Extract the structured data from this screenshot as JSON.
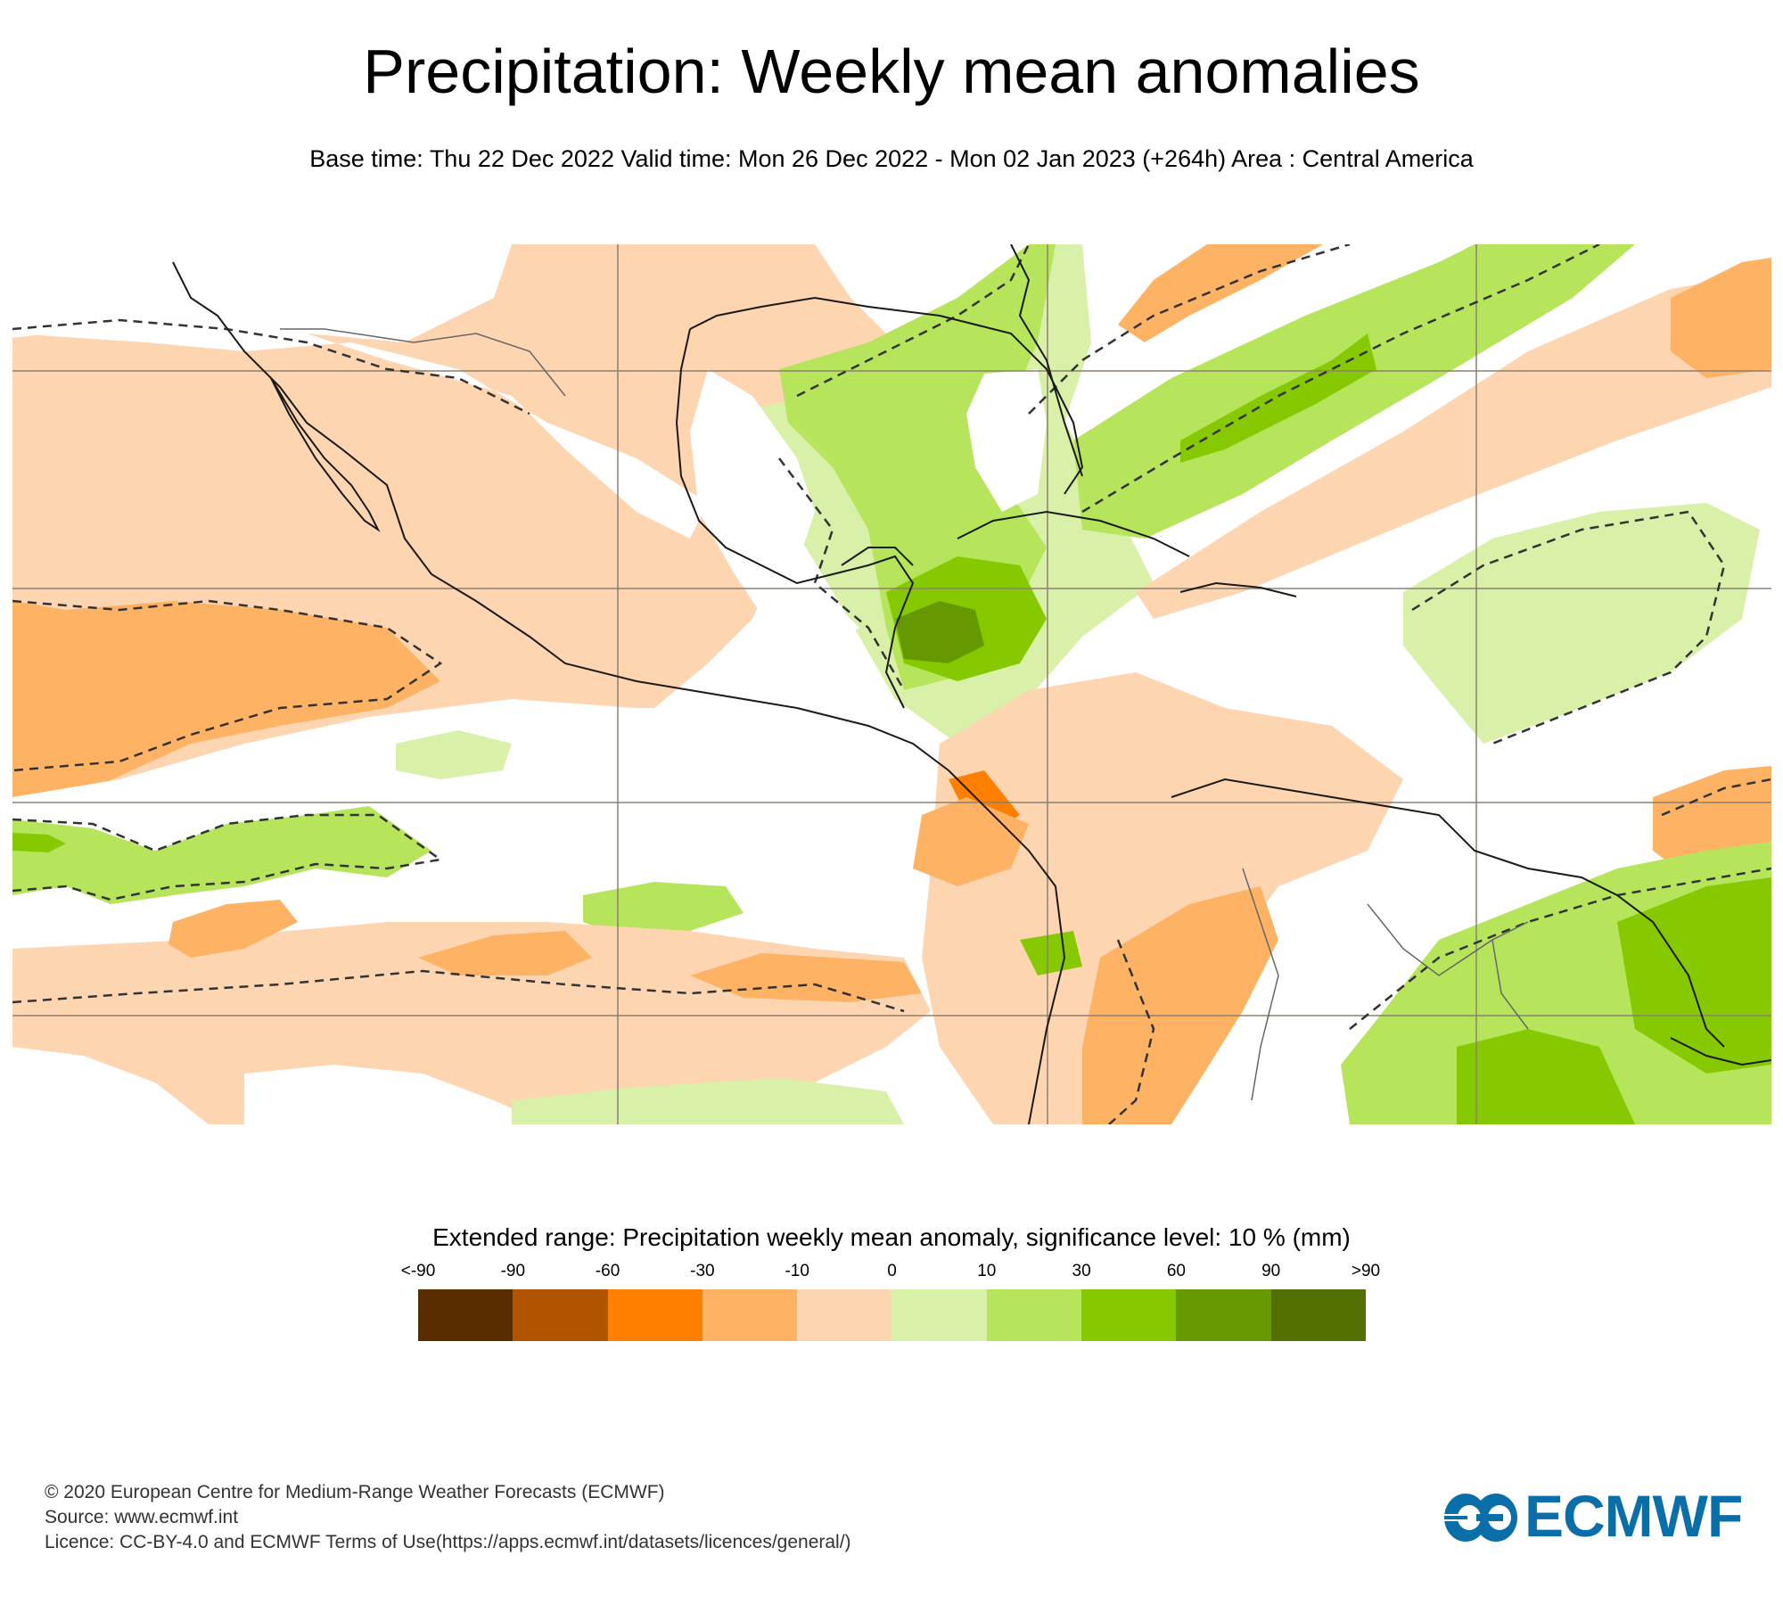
{
  "header": {
    "title": "Precipitation: Weekly mean anomalies",
    "subtitle": "Base time: Thu 22 Dec 2022 Valid time: Mon 26 Dec 2022 - Mon 02 Jan 2023 (+264h) Area : Central America"
  },
  "map": {
    "area": "Central America",
    "significance_contour": "dashed",
    "features": [
      "coastlines",
      "country-borders",
      "lat-lon-gridlines",
      "anomaly-shading"
    ]
  },
  "legend": {
    "title": "Extended range: Precipitation weekly mean anomaly, significance level: 10 % (mm)",
    "labels": [
      "<-90",
      "-90",
      "-60",
      "-30",
      "-10",
      "0",
      "10",
      "30",
      "60",
      "90",
      ">90"
    ],
    "colors": [
      "#5a2d00",
      "#b05400",
      "#ff8000",
      "#fdb264",
      "#fdd5b1",
      "#d9f0a9",
      "#b6e55c",
      "#87c900",
      "#669900",
      "#527000"
    ]
  },
  "footer": {
    "copyright": "© 2020 European Centre for Medium-Range Weather Forecasts (ECMWF)",
    "source": "Source: www.ecmwf.int",
    "licence": "Licence: CC-BY-4.0 and ECMWF Terms of Use(https://apps.ecmwf.int/datasets/licences/general/)"
  },
  "logo": {
    "text": "ECMWF",
    "color": "#0a6fa8"
  }
}
